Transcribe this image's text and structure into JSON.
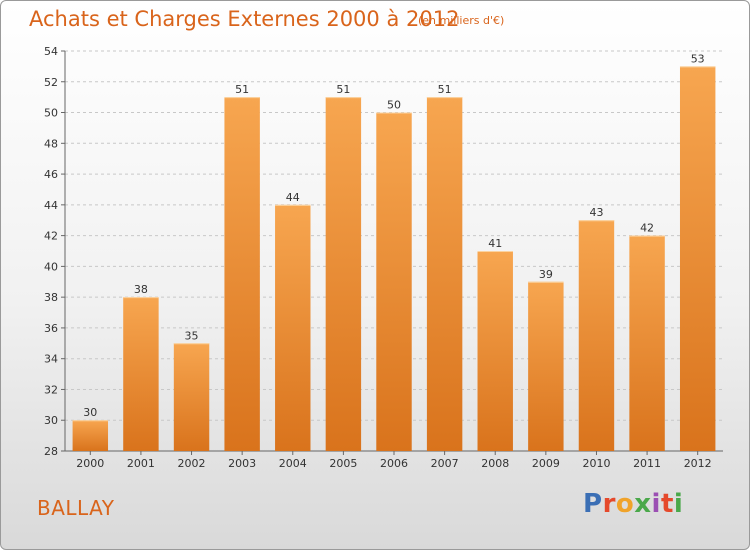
{
  "header": {
    "title": "Achats et Charges Externes 2000 à 2012",
    "subtitle": "(en milliers d'€)"
  },
  "footer": {
    "commune": "BALLAY",
    "logo_letters": [
      "P",
      "r",
      "o",
      "x",
      "i",
      "t",
      "i"
    ]
  },
  "colors": {
    "bar_top": "#f7a650",
    "bar_bottom": "#d9731c",
    "title": "#d9641b",
    "grid": "#c8c8c8"
  },
  "chart_data": {
    "type": "bar",
    "categories": [
      "2000",
      "2001",
      "2002",
      "2003",
      "2004",
      "2005",
      "2006",
      "2007",
      "2008",
      "2009",
      "2010",
      "2011",
      "2012"
    ],
    "values": [
      30,
      38,
      35,
      51,
      44,
      51,
      50,
      51,
      41,
      39,
      43,
      42,
      53
    ],
    "ylim": [
      28,
      54
    ],
    "yticks": [
      28,
      30,
      32,
      34,
      36,
      38,
      40,
      42,
      44,
      46,
      48,
      50,
      52,
      54
    ],
    "grid": true
  }
}
